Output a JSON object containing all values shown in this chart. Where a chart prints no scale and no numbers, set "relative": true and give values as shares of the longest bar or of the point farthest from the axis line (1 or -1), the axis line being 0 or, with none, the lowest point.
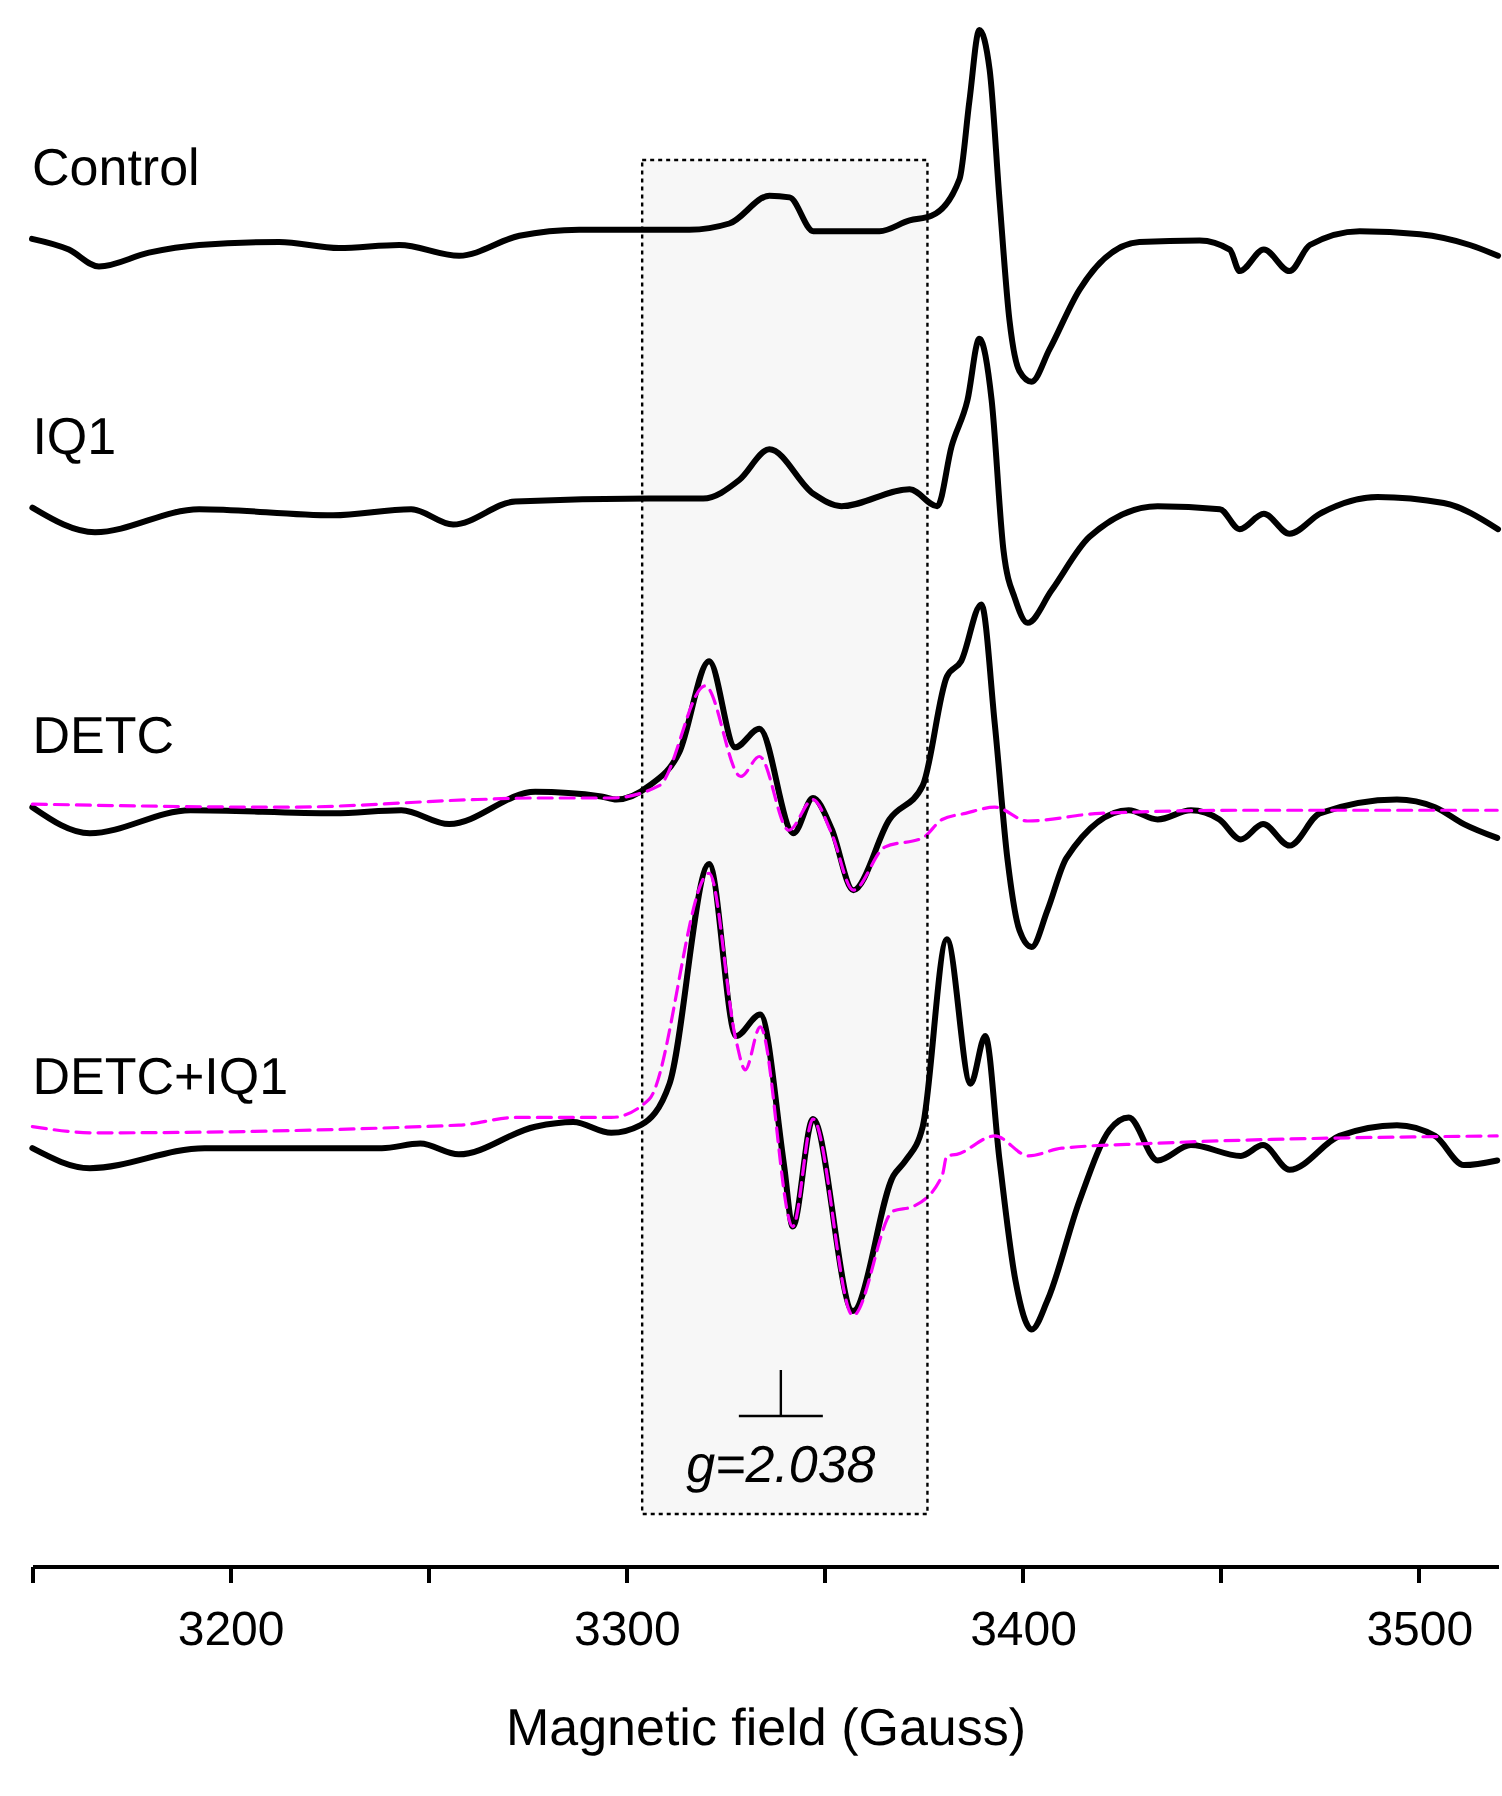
{
  "chart_data": {
    "type": "line",
    "relative": true,
    "xlabel": "Magnetic field (Gauss)",
    "xlim": [
      3150,
      3520
    ],
    "xticks": [
      {
        "value": 3150,
        "label": null
      },
      3200,
      {
        "value": 3250,
        "label": null
      },
      3300,
      {
        "value": 3350,
        "label": null
      },
      3400,
      {
        "value": 3450,
        "label": null
      },
      3500
    ],
    "tick_labels": "x",
    "grid": false,
    "line_style": "solid",
    "bands": [
      {
        "axis": "x",
        "from": 3304,
        "to": 3376,
        "color": "#000000"
      }
    ],
    "annotations": [
      {
        "text": "g=2.038",
        "x": 3339
      }
    ],
    "series": [
      {
        "name": "Control",
        "color": "#000000",
        "x": [
          3150.0,
          3159.3,
          3166.9,
          3179.5,
          3192.2,
          3212.4,
          3227.5,
          3242.7,
          3257.8,
          3273.0,
          3288.1,
          3303.3,
          3315.9,
          3326.0,
          3336.1,
          3341.2,
          3347.2,
          3363.9,
          3371.5,
          3377.0,
          3384.1,
          3386.6,
          3389.1,
          3391.7,
          3394.2,
          3396.7,
          3399.2,
          3402.3,
          3406.8,
          3414.4,
          3429.5,
          3444.7,
          3452.3,
          3454.8,
          3460.9,
          3467.4,
          3472.5,
          3485.1,
          3500.3,
          3512.9,
          3520.0
        ],
        "values": [
          0.864,
          0.857,
          0.846,
          0.855,
          0.86,
          0.862,
          0.858,
          0.86,
          0.853,
          0.866,
          0.87,
          0.87,
          0.87,
          0.874,
          0.892,
          0.891,
          0.869,
          0.869,
          0.876,
          0.879,
          0.903,
          0.954,
          1.0,
          0.974,
          0.889,
          0.811,
          0.778,
          0.771,
          0.792,
          0.831,
          0.862,
          0.863,
          0.857,
          0.843,
          0.857,
          0.843,
          0.86,
          0.869,
          0.867,
          0.86,
          0.853
        ]
      },
      {
        "name": "IQ1",
        "color": "#000000",
        "x": [
          3150.1,
          3165.9,
          3192.2,
          3226.0,
          3245.7,
          3256.3,
          3272.0,
          3305.8,
          3319.4,
          3328.5,
          3336.1,
          3347.2,
          3354.3,
          3371.5,
          3378.5,
          3382.1,
          3386.1,
          3389.1,
          3392.2,
          3395.2,
          3398.2,
          3401.3,
          3407.3,
          3416.9,
          3434.1,
          3449.8,
          3454.8,
          3460.9,
          3467.4,
          3475.0,
          3489.6,
          3506.3,
          3520.0
        ],
        "values": [
          0.689,
          0.673,
          0.688,
          0.684,
          0.688,
          0.678,
          0.693,
          0.695,
          0.695,
          0.707,
          0.727,
          0.698,
          0.69,
          0.701,
          0.69,
          0.729,
          0.759,
          0.799,
          0.759,
          0.661,
          0.629,
          0.614,
          0.635,
          0.67,
          0.69,
          0.688,
          0.675,
          0.685,
          0.672,
          0.685,
          0.696,
          0.692,
          0.675
        ]
      },
      {
        "name": "DETC",
        "color": "#000000",
        "x": [
          3150.1,
          3164.6,
          3190.0,
          3226.3,
          3243.2,
          3255.3,
          3277.0,
          3293.7,
          3297.5,
          3305.8,
          3313.4,
          3320.9,
          3327.5,
          3333.6,
          3342.2,
          3347.1,
          3351.8,
          3357.3,
          3366.4,
          3374.8,
          3380.9,
          3384.5,
          3389.6,
          3393.0,
          3396.2,
          3399.2,
          3402.3,
          3406.3,
          3411.1,
          3426.8,
          3434.1,
          3442.5,
          3449.7,
          3455.1,
          3460.7,
          3467.4,
          3475.0,
          3494.5,
          3504.1,
          3511.4,
          3519.8
        ],
        "values": [
          0.494,
          0.477,
          0.492,
          0.49,
          0.492,
          0.483,
          0.504,
          0.501,
          0.499,
          0.508,
          0.53,
          0.589,
          0.533,
          0.545,
          0.477,
          0.5,
          0.48,
          0.44,
          0.486,
          0.508,
          0.579,
          0.589,
          0.626,
          0.548,
          0.46,
          0.414,
          0.403,
          0.427,
          0.461,
          0.492,
          0.486,
          0.492,
          0.486,
          0.473,
          0.483,
          0.469,
          0.49,
          0.499,
          0.494,
          0.483,
          0.474
        ]
      },
      {
        "color": "#ff00ff",
        "line_style": "dashed",
        "x": [
          3150.1,
          3214.1,
          3262.4,
          3277.0,
          3296.2,
          3308.3,
          3319.9,
          3328.9,
          3333.6,
          3341.0,
          3347.1,
          3351.8,
          3357.3,
          3365.2,
          3374.8,
          3379.7,
          3385.6,
          3393.0,
          3401.3,
          3419.5,
          3455.8,
          3519.8
        ],
        "values": [
          0.496,
          0.494,
          0.499,
          0.5,
          0.5,
          0.508,
          0.573,
          0.514,
          0.527,
          0.479,
          0.499,
          0.477,
          0.44,
          0.468,
          0.474,
          0.486,
          0.49,
          0.494,
          0.485,
          0.49,
          0.492,
          0.492
        ]
      },
      {
        "name": "DETC+IQ1",
        "color": "#000000",
        "x": [
          3150.1,
          3164.6,
          3193.6,
          3238.3,
          3248.0,
          3257.7,
          3277.0,
          3286.6,
          3296.2,
          3303.6,
          3310.9,
          3320.9,
          3327.7,
          3333.8,
          3339.8,
          3342.0,
          3347.1,
          3357.2,
          3367.4,
          3370.5,
          3374.8,
          3380.9,
          3386.9,
          3390.6,
          3394.2,
          3398.2,
          3402.3,
          3406.3,
          3414.4,
          3422.0,
          3426.8,
          3434.1,
          3442.5,
          3455.1,
          3460.7,
          3467.4,
          3480.0,
          3494.5,
          3504.1,
          3511.4,
          3519.8
        ],
        "values": [
          0.272,
          0.259,
          0.272,
          0.272,
          0.275,
          0.268,
          0.286,
          0.289,
          0.282,
          0.287,
          0.314,
          0.457,
          0.345,
          0.359,
          0.261,
          0.221,
          0.291,
          0.166,
          0.254,
          0.264,
          0.286,
          0.408,
          0.314,
          0.345,
          0.264,
          0.186,
          0.154,
          0.173,
          0.238,
          0.284,
          0.292,
          0.264,
          0.274,
          0.267,
          0.274,
          0.258,
          0.28,
          0.287,
          0.28,
          0.261,
          0.264
        ]
      },
      {
        "color": "#ff00ff",
        "line_style": "dashed",
        "x": [
          3150.1,
          3165.9,
          3257.7,
          3272.0,
          3296.2,
          3305.8,
          3320.9,
          3327.7,
          3330.0,
          3333.8,
          3342.0,
          3347.1,
          3357.2,
          3367.3,
          3372.3,
          3379.7,
          3380.9,
          3383.4,
          3393.0,
          3401.5,
          3409.9,
          3431.6,
          3519.8
        ],
        "values": [
          0.286,
          0.282,
          0.287,
          0.292,
          0.292,
          0.304,
          0.451,
          0.342,
          0.323,
          0.351,
          0.221,
          0.291,
          0.163,
          0.231,
          0.234,
          0.254,
          0.267,
          0.268,
          0.28,
          0.267,
          0.272,
          0.275,
          0.28
        ]
      }
    ]
  }
}
